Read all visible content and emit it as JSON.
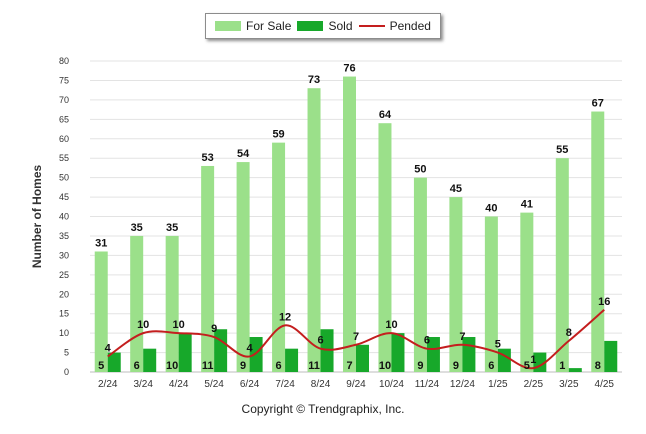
{
  "chart_data": {
    "type": "bar",
    "title": "",
    "xlabel": "",
    "ylabel": "Number of Homes",
    "ylim": [
      0,
      80
    ],
    "yticks": [
      0,
      5,
      10,
      15,
      20,
      25,
      30,
      35,
      40,
      45,
      50,
      55,
      60,
      65,
      70,
      75,
      80
    ],
    "grid": true,
    "legend_position": "top-center",
    "categories": [
      "2/24",
      "3/24",
      "4/24",
      "5/24",
      "6/24",
      "7/24",
      "8/24",
      "9/24",
      "10/24",
      "11/24",
      "12/24",
      "1/25",
      "2/25",
      "3/25",
      "4/25"
    ],
    "series": [
      {
        "name": "For Sale",
        "kind": "bar",
        "color": "#9be08a",
        "values": [
          31,
          35,
          35,
          53,
          54,
          59,
          73,
          76,
          64,
          50,
          45,
          40,
          41,
          55,
          67
        ]
      },
      {
        "name": "Sold",
        "kind": "bar",
        "color": "#17a82a",
        "values": [
          5,
          6,
          10,
          11,
          9,
          6,
          11,
          7,
          10,
          9,
          9,
          6,
          5,
          1,
          8
        ]
      },
      {
        "name": "Pended",
        "kind": "line",
        "color": "#c41e1e",
        "values": [
          4,
          10,
          10,
          9,
          4,
          12,
          6,
          7,
          10,
          6,
          7,
          5,
          1,
          8,
          16
        ]
      }
    ]
  },
  "footer": {
    "copyright": "Copyright © Trendgraphix, Inc."
  }
}
